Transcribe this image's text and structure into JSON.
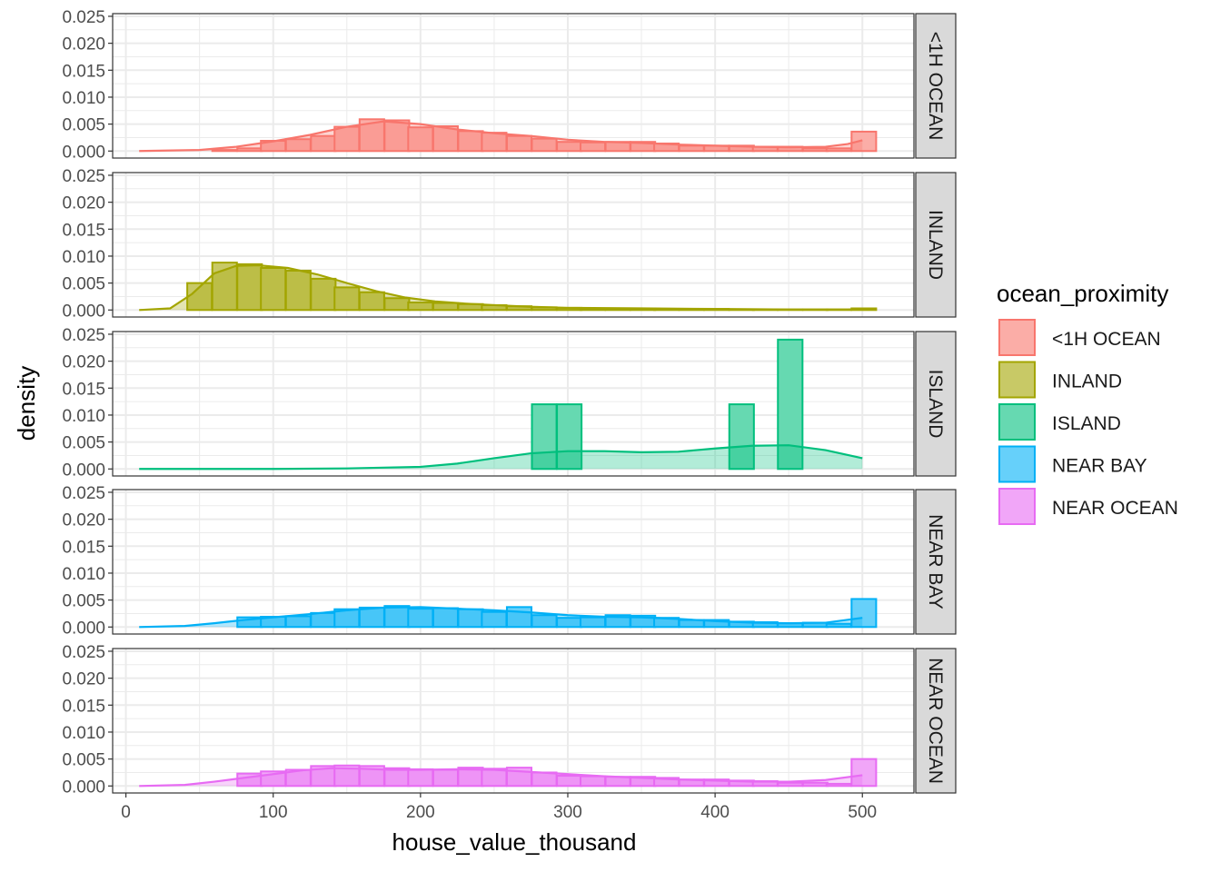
{
  "chart_data": {
    "type": "histogram-density-facets",
    "xlabel": "house_value_thousand",
    "ylabel": "density",
    "xlim": [
      -9,
      535
    ],
    "ylim": [
      -0.0013,
      0.0255
    ],
    "x_ticks": [
      0,
      100,
      200,
      300,
      400,
      500
    ],
    "x_tick_labels": [
      "0",
      "100",
      "200",
      "300",
      "400",
      "500"
    ],
    "y_ticks": [
      0,
      0.005,
      0.01,
      0.015,
      0.02,
      0.025
    ],
    "y_tick_labels": [
      "0.000",
      "0.005",
      "0.010",
      "0.015",
      "0.020",
      "0.025"
    ],
    "grid": true,
    "bin_width": 16.7,
    "legend": {
      "title": "ocean_proximity",
      "placement": "right",
      "entries": [
        "<1H OCEAN",
        "INLAND",
        "ISLAND",
        "NEAR BAY",
        "NEAR OCEAN"
      ]
    },
    "series": [
      {
        "name": "<1H OCEAN",
        "color": "#F8766D",
        "bin_centers": [
          67,
          84,
          100,
          117,
          134,
          150,
          167,
          184,
          200,
          217,
          234,
          250,
          267,
          284,
          301,
          317,
          334,
          351,
          367,
          384,
          401,
          418,
          434,
          451,
          468,
          484,
          501
        ],
        "bin_density": [
          0.0002,
          0.0005,
          0.0019,
          0.0022,
          0.0028,
          0.0045,
          0.0059,
          0.0057,
          0.0044,
          0.0046,
          0.0037,
          0.0034,
          0.0028,
          0.0023,
          0.0017,
          0.0016,
          0.0017,
          0.0017,
          0.0014,
          0.001,
          0.001,
          0.001,
          0.0008,
          0.0008,
          0.0005,
          0.0005,
          0.0036
        ],
        "density_x": [
          9,
          50,
          75,
          100,
          125,
          150,
          175,
          200,
          225,
          250,
          275,
          300,
          325,
          350,
          375,
          400,
          425,
          450,
          475,
          490,
          500
        ],
        "density_y": [
          0.0,
          0.0002,
          0.0008,
          0.0018,
          0.003,
          0.0045,
          0.0055,
          0.005,
          0.004,
          0.0033,
          0.0028,
          0.0021,
          0.0017,
          0.0015,
          0.0012,
          0.001,
          0.0008,
          0.0007,
          0.0008,
          0.0013,
          0.002
        ]
      },
      {
        "name": "INLAND",
        "color": "#A3A500",
        "bin_centers": [
          50,
          67,
          84,
          100,
          117,
          134,
          150,
          167,
          184,
          200,
          217,
          234,
          250,
          267,
          284,
          301,
          317,
          334,
          351,
          367,
          384,
          401,
          418,
          434,
          451,
          468,
          484,
          501
        ],
        "bin_density": [
          0.005,
          0.0088,
          0.0085,
          0.0078,
          0.0073,
          0.0058,
          0.0042,
          0.0033,
          0.0022,
          0.0014,
          0.0013,
          0.0011,
          0.0009,
          0.0007,
          0.0005,
          0.0004,
          0.0003,
          0.0003,
          0.0003,
          0.0002,
          0.0002,
          0.0002,
          0.0001,
          0.0001,
          0.0001,
          0.0001,
          0.0001,
          0.0003
        ],
        "density_x": [
          9,
          30,
          45,
          60,
          75,
          90,
          110,
          130,
          150,
          170,
          190,
          210,
          230,
          250,
          275,
          300,
          350,
          400,
          450,
          490,
          500
        ],
        "density_y": [
          0.0,
          0.0003,
          0.003,
          0.0068,
          0.0082,
          0.0083,
          0.0078,
          0.0066,
          0.005,
          0.0035,
          0.0023,
          0.0016,
          0.0012,
          0.0009,
          0.0006,
          0.0004,
          0.0003,
          0.0002,
          0.0001,
          0.0001,
          0.0002
        ]
      },
      {
        "name": "ISLAND",
        "color": "#00BF7D",
        "bin_centers": [
          284,
          301,
          418,
          451
        ],
        "bin_density": [
          0.012,
          0.012,
          0.012,
          0.024
        ],
        "density_x": [
          9,
          100,
          150,
          200,
          225,
          250,
          275,
          300,
          325,
          350,
          375,
          400,
          425,
          450,
          475,
          500
        ],
        "density_y": [
          0.0,
          0.0,
          0.0001,
          0.0004,
          0.001,
          0.002,
          0.0029,
          0.0033,
          0.0033,
          0.0031,
          0.0032,
          0.0038,
          0.0043,
          0.0044,
          0.0035,
          0.002
        ]
      },
      {
        "name": "NEAR BAY",
        "color": "#00B0F6",
        "bin_centers": [
          84,
          100,
          117,
          134,
          150,
          167,
          184,
          200,
          217,
          234,
          250,
          267,
          284,
          301,
          317,
          334,
          351,
          367,
          384,
          401,
          418,
          434,
          451,
          468,
          484,
          501
        ],
        "bin_density": [
          0.0018,
          0.0019,
          0.002,
          0.0026,
          0.0033,
          0.0036,
          0.0039,
          0.0034,
          0.0035,
          0.0033,
          0.0028,
          0.0037,
          0.0022,
          0.0017,
          0.0018,
          0.0022,
          0.0021,
          0.0017,
          0.0013,
          0.0013,
          0.001,
          0.0009,
          0.0007,
          0.0008,
          0.0006,
          0.0052
        ],
        "density_x": [
          9,
          40,
          60,
          80,
          100,
          125,
          150,
          175,
          200,
          225,
          250,
          275,
          300,
          325,
          350,
          375,
          400,
          425,
          450,
          475,
          500
        ],
        "density_y": [
          0.0,
          0.0002,
          0.0007,
          0.0013,
          0.0018,
          0.0024,
          0.0031,
          0.0036,
          0.0037,
          0.0034,
          0.0031,
          0.0027,
          0.0022,
          0.0019,
          0.0018,
          0.0015,
          0.0011,
          0.0008,
          0.0007,
          0.0008,
          0.0017
        ]
      },
      {
        "name": "NEAR OCEAN",
        "color": "#E76BF3",
        "bin_centers": [
          84,
          100,
          117,
          134,
          150,
          167,
          184,
          200,
          217,
          234,
          250,
          267,
          284,
          301,
          317,
          334,
          351,
          367,
          384,
          401,
          418,
          434,
          451,
          468,
          484,
          501
        ],
        "bin_density": [
          0.0023,
          0.0027,
          0.003,
          0.0037,
          0.0038,
          0.0037,
          0.0033,
          0.0031,
          0.003,
          0.0034,
          0.0032,
          0.0034,
          0.0025,
          0.0019,
          0.0018,
          0.0017,
          0.0017,
          0.0015,
          0.0012,
          0.0012,
          0.001,
          0.0009,
          0.0006,
          0.0006,
          0.0004,
          0.005
        ],
        "density_x": [
          9,
          40,
          60,
          80,
          100,
          120,
          140,
          160,
          180,
          200,
          225,
          250,
          275,
          300,
          325,
          350,
          375,
          400,
          425,
          450,
          475,
          500
        ],
        "density_y": [
          0.0,
          0.0002,
          0.0008,
          0.0015,
          0.0022,
          0.0029,
          0.0033,
          0.0032,
          0.003,
          0.003,
          0.0031,
          0.003,
          0.0026,
          0.0022,
          0.0018,
          0.0015,
          0.0012,
          0.001,
          0.0008,
          0.0008,
          0.0011,
          0.002
        ]
      }
    ]
  }
}
